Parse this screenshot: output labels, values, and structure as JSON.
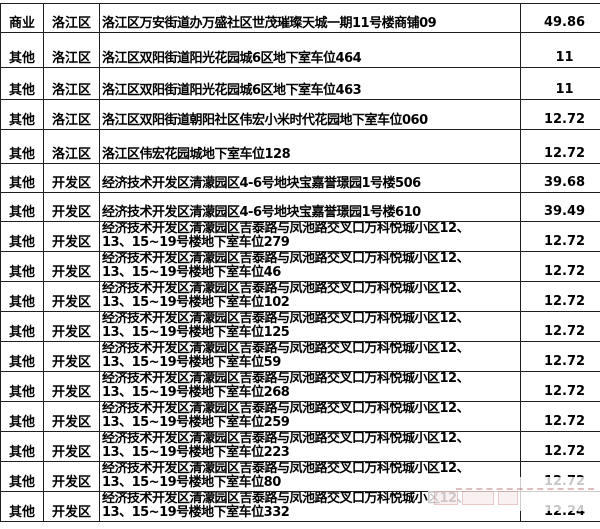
{
  "colors": {
    "background": "#ffffff",
    "grid_border": "#1f1f1f",
    "text": "#000000",
    "watermark_tint": "#b46a6a"
  },
  "chart_data": {
    "type": "table",
    "title": "",
    "columns": [
      "用途类别",
      "区域",
      "地址",
      "面积"
    ],
    "rows": [
      {
        "category": "商业",
        "district": "洛江区",
        "address": "洛江区万安街道办万盛社区世茂璀璨天城一期11号楼商铺09",
        "area": "49.86"
      },
      {
        "category": "其他",
        "district": "洛江区",
        "address": "洛江区双阳街道阳光花园城6区地下室车位464",
        "area": "11"
      },
      {
        "category": "其他",
        "district": "洛江区",
        "address": "洛江区双阳街道阳光花园城6区地下室车位463",
        "area": "11"
      },
      {
        "category": "其他",
        "district": "洛江区",
        "address": "洛江区双阳街道朝阳社区伟宏小米时代花园地下室车位060",
        "area": "12.72"
      },
      {
        "category": "其他",
        "district": "洛江区",
        "address": "洛江区伟宏花园城地下室车位128",
        "area": "12.72"
      },
      {
        "category": "其他",
        "district": "开发区",
        "address": "经济技术开发区清濛园区4-6号地块宝嘉誉璟园1号楼506",
        "area": "39.68"
      },
      {
        "category": "其他",
        "district": "开发区",
        "address": "经济技术开发区清濛园区4-6号地块宝嘉誉璟园1号楼610",
        "area": "39.49"
      },
      {
        "category": "其他",
        "district": "开发区",
        "address": "经济技术开发区清濛园区吉泰路与凤池路交叉口万科悦城小区12、\n13、15~19号楼地下室车位279",
        "area": "12.72"
      },
      {
        "category": "其他",
        "district": "开发区",
        "address": "经济技术开发区清濛园区吉泰路与凤池路交叉口万科悦城小区12、\n13、15~19号楼地下室车位46",
        "area": "12.72"
      },
      {
        "category": "其他",
        "district": "开发区",
        "address": "经济技术开发区清濛园区吉泰路与凤池路交叉口万科悦城小区12、\n13、15~19号楼地下室车位102",
        "area": "12.72"
      },
      {
        "category": "其他",
        "district": "开发区",
        "address": "经济技术开发区清濛园区吉泰路与凤池路交叉口万科悦城小区12、\n13、15~19号楼地下室车位125",
        "area": "12.72"
      },
      {
        "category": "其他",
        "district": "开发区",
        "address": "经济技术开发区清濛园区吉泰路与凤池路交叉口万科悦城小区12、\n13、15~19号楼地下室车位59",
        "area": "12.72"
      },
      {
        "category": "其他",
        "district": "开发区",
        "address": "经济技术开发区清濛园区吉泰路与凤池路交叉口万科悦城小区12、\n13、15~19号楼地下室车位268",
        "area": "12.72"
      },
      {
        "category": "其他",
        "district": "开发区",
        "address": "经济技术开发区清濛园区吉泰路与凤池路交叉口万科悦城小区12、\n13、15~19号楼地下室车位259",
        "area": "12.72"
      },
      {
        "category": "其他",
        "district": "开发区",
        "address": "经济技术开发区清濛园区吉泰路与凤池路交叉口万科悦城小区12、\n13、15~19号楼地下室车位223",
        "area": "12.72"
      },
      {
        "category": "其他",
        "district": "开发区",
        "address": "经济技术开发区清濛园区吉泰路与凤池路交叉口万科悦城小区12、\n13、15~19号楼地下室车位80",
        "area": "12.72"
      },
      {
        "category": "其他",
        "district": "开发区",
        "address": "经济技术开发区清濛园区吉泰路与凤池路交叉口万科悦城小区12、\n13、15~19号楼地下室车位332",
        "area": "12.24"
      }
    ]
  },
  "watermark": {
    "present": true,
    "legible": false,
    "description": "faint semi-transparent white patch with illegible reddish marks over bottom-right cells"
  }
}
